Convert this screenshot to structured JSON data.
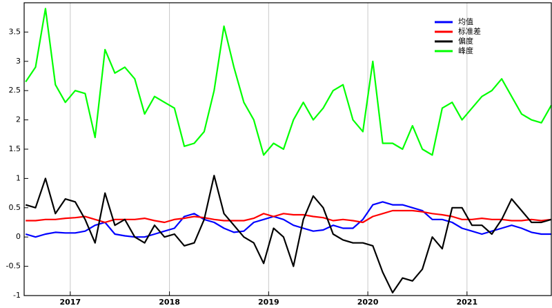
{
  "chart_data": {
    "type": "line",
    "x": [
      2016.55,
      2016.65,
      2016.75,
      2016.85,
      2016.95,
      2017.05,
      2017.15,
      2017.25,
      2017.35,
      2017.45,
      2017.55,
      2017.65,
      2017.75,
      2017.85,
      2017.95,
      2018.05,
      2018.15,
      2018.25,
      2018.35,
      2018.45,
      2018.55,
      2018.65,
      2018.75,
      2018.85,
      2018.95,
      2019.05,
      2019.15,
      2019.25,
      2019.35,
      2019.45,
      2019.55,
      2019.65,
      2019.75,
      2019.85,
      2019.95,
      2020.05,
      2020.15,
      2020.25,
      2020.35,
      2020.45,
      2020.55,
      2020.65,
      2020.75,
      2020.85,
      2020.95,
      2021.05,
      2021.15,
      2021.25,
      2021.35,
      2021.45,
      2021.55,
      2021.65,
      2021.75,
      2021.85
    ],
    "series": [
      {
        "name": "均值",
        "color": "#0000ff",
        "values": [
          0.05,
          0.0,
          0.05,
          0.08,
          0.07,
          0.07,
          0.1,
          0.2,
          0.25,
          0.05,
          0.02,
          0.0,
          0.0,
          0.05,
          0.1,
          0.15,
          0.35,
          0.4,
          0.3,
          0.25,
          0.15,
          0.08,
          0.1,
          0.25,
          0.3,
          0.35,
          0.3,
          0.2,
          0.15,
          0.1,
          0.12,
          0.2,
          0.15,
          0.15,
          0.3,
          0.55,
          0.6,
          0.55,
          0.55,
          0.5,
          0.45,
          0.3,
          0.3,
          0.25,
          0.15,
          0.1,
          0.05,
          0.1,
          0.15,
          0.2,
          0.15,
          0.08,
          0.05,
          0.05
        ]
      },
      {
        "name": "标准差",
        "color": "#ff0000",
        "values": [
          0.28,
          0.28,
          0.3,
          0.3,
          0.32,
          0.33,
          0.35,
          0.3,
          0.25,
          0.3,
          0.3,
          0.3,
          0.32,
          0.28,
          0.25,
          0.3,
          0.32,
          0.35,
          0.33,
          0.3,
          0.28,
          0.28,
          0.28,
          0.32,
          0.4,
          0.35,
          0.4,
          0.38,
          0.38,
          0.35,
          0.33,
          0.28,
          0.3,
          0.28,
          0.25,
          0.35,
          0.4,
          0.45,
          0.45,
          0.45,
          0.43,
          0.4,
          0.38,
          0.35,
          0.3,
          0.3,
          0.32,
          0.3,
          0.3,
          0.28,
          0.28,
          0.3,
          0.28,
          0.3
        ]
      },
      {
        "name": "偏度",
        "color": "#000000",
        "values": [
          0.55,
          0.5,
          1.0,
          0.4,
          0.65,
          0.6,
          0.3,
          -0.1,
          0.75,
          0.2,
          0.3,
          0.0,
          -0.1,
          0.2,
          0.0,
          0.05,
          -0.15,
          -0.1,
          0.3,
          1.05,
          0.4,
          0.2,
          0.0,
          -0.1,
          -0.45,
          0.15,
          0.0,
          -0.5,
          0.3,
          0.7,
          0.5,
          0.05,
          -0.05,
          -0.1,
          -0.1,
          -0.15,
          -0.6,
          -0.95,
          -0.7,
          -0.75,
          -0.55,
          0.0,
          -0.2,
          0.5,
          0.5,
          0.2,
          0.2,
          0.05,
          0.3,
          0.65,
          0.45,
          0.25,
          0.25,
          0.3
        ]
      },
      {
        "name": "峰度",
        "color": "#00ff00",
        "values": [
          2.65,
          2.9,
          3.9,
          2.6,
          2.3,
          2.5,
          2.45,
          1.7,
          3.2,
          2.8,
          2.9,
          2.7,
          2.1,
          2.4,
          2.3,
          2.2,
          1.55,
          1.6,
          1.8,
          2.5,
          3.6,
          2.9,
          2.3,
          2.0,
          1.4,
          1.6,
          1.5,
          2.0,
          2.3,
          2.0,
          2.2,
          2.5,
          2.6,
          2.0,
          1.8,
          3.0,
          1.6,
          1.6,
          1.5,
          1.9,
          1.5,
          1.4,
          2.2,
          2.3,
          2.0,
          2.2,
          2.4,
          2.5,
          2.7,
          2.4,
          2.1,
          2.0,
          1.95,
          2.25
        ]
      }
    ],
    "xlim": [
      2016.535,
      2021.85
    ],
    "xticks": [
      2017,
      2018,
      2019,
      2020,
      2021
    ],
    "ylim": [
      -1,
      4
    ],
    "yticks": [
      -1,
      -0.5,
      0,
      0.5,
      1,
      1.5,
      2,
      2.5,
      3,
      3.5
    ],
    "grid": true,
    "legend": "upper right"
  }
}
